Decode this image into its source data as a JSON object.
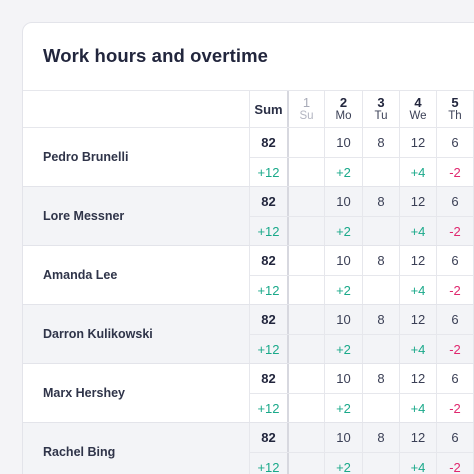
{
  "title": "Work hours and overtime",
  "header": {
    "sum_label": "Sum",
    "days": [
      {
        "num": "1",
        "name": "Su",
        "weekend": true
      },
      {
        "num": "2",
        "name": "Mo",
        "weekend": false
      },
      {
        "num": "3",
        "name": "Tu",
        "weekend": false
      },
      {
        "num": "4",
        "name": "We",
        "weekend": false
      },
      {
        "num": "5",
        "name": "Th",
        "weekend": false
      }
    ]
  },
  "employees": [
    {
      "name": "Pedro Brunelli",
      "sum": "82",
      "overtime_sum": "+12",
      "hours": [
        "",
        "10",
        "8",
        "12",
        "6"
      ],
      "overtime": [
        "",
        "+2",
        "",
        "+4",
        "-2"
      ]
    },
    {
      "name": "Lore Messner",
      "sum": "82",
      "overtime_sum": "+12",
      "hours": [
        "",
        "10",
        "8",
        "12",
        "6"
      ],
      "overtime": [
        "",
        "+2",
        "",
        "+4",
        "-2"
      ]
    },
    {
      "name": "Amanda Lee",
      "sum": "82",
      "overtime_sum": "+12",
      "hours": [
        "",
        "10",
        "8",
        "12",
        "6"
      ],
      "overtime": [
        "",
        "+2",
        "",
        "+4",
        "-2"
      ]
    },
    {
      "name": "Darron Kulikowski",
      "sum": "82",
      "overtime_sum": "+12",
      "hours": [
        "",
        "10",
        "8",
        "12",
        "6"
      ],
      "overtime": [
        "",
        "+2",
        "",
        "+4",
        "-2"
      ]
    },
    {
      "name": "Marx Hershey",
      "sum": "82",
      "overtime_sum": "+12",
      "hours": [
        "",
        "10",
        "8",
        "12",
        "6"
      ],
      "overtime": [
        "",
        "+2",
        "",
        "+4",
        "-2"
      ]
    },
    {
      "name": "Rachel Bing",
      "sum": "82",
      "overtime_sum": "+12",
      "hours": [
        "",
        "10",
        "8",
        "12",
        "6"
      ],
      "overtime": [
        "",
        "+2",
        "",
        "+4",
        "-2"
      ]
    }
  ],
  "colors": {
    "positive": "#1aa98a",
    "negative": "#e0286f"
  }
}
